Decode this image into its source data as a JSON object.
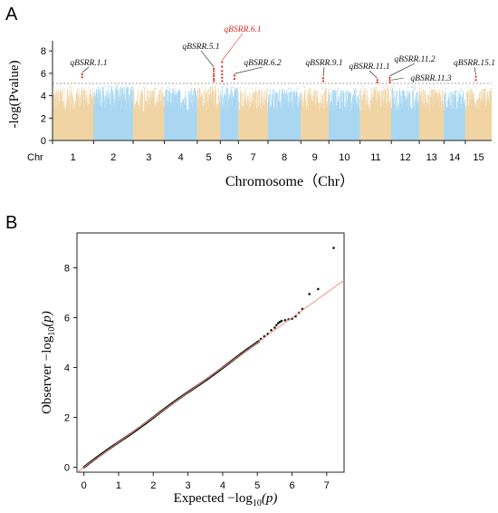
{
  "panels": {
    "a_label": "A",
    "b_label": "B"
  },
  "colors": {
    "odd_chr": "#f0d4a4",
    "even_chr": "#a9d7f2",
    "significant": "#e3261f",
    "threshold": "#888888",
    "highlight_label": "#e3261f",
    "qq_points": "#111111",
    "qq_line": "#f08c7c"
  },
  "chart_data": [
    {
      "type": "scatter",
      "subtype": "manhattan",
      "ylabel": "-log(Pvalue)",
      "xlabel": "Chromosome（Chr）",
      "x_prefix": "Chr",
      "ylim": [
        0,
        8.5
      ],
      "yticks": [
        "0",
        "2",
        "4",
        "6",
        "8"
      ],
      "chromosomes": [
        "1",
        "2",
        "3",
        "4",
        "5",
        "6",
        "7",
        "8",
        "9",
        "10",
        "11",
        "12",
        "13",
        "14",
        "15"
      ],
      "chromosome_widths": [
        1.25,
        1.2,
        0.95,
        1.0,
        0.7,
        0.55,
        0.9,
        1.0,
        0.85,
        0.95,
        0.95,
        0.85,
        0.75,
        0.65,
        0.8
      ],
      "threshold": 5.1,
      "baseline_max": [
        4.8,
        4.9,
        4.7,
        4.7,
        4.9,
        4.9,
        4.6,
        4.6,
        4.7,
        4.6,
        4.8,
        4.7,
        4.6,
        4.5,
        4.7
      ],
      "significant_points": [
        {
          "chr": "1",
          "pos": 0.72,
          "values": [
            5.9,
            5.65
          ]
        },
        {
          "chr": "5",
          "pos": 0.72,
          "values": [
            5.3,
            5.5,
            5.75,
            5.95,
            6.2,
            6.4
          ]
        },
        {
          "chr": "6",
          "pos": 0.1,
          "values": [
            5.3,
            5.6,
            5.9,
            6.2,
            6.6,
            7.0
          ]
        },
        {
          "chr": "6",
          "pos": 0.78,
          "values": [
            5.5,
            5.8
          ]
        },
        {
          "chr": "9",
          "pos": 0.8,
          "values": [
            5.3,
            5.55
          ]
        },
        {
          "chr": "11",
          "pos": 0.55,
          "values": [
            5.2,
            5.4
          ]
        },
        {
          "chr": "11",
          "pos": 0.95,
          "values": [
            5.2,
            5.4,
            5.6
          ]
        },
        {
          "chr": "15",
          "pos": 0.4,
          "values": [
            5.4,
            5.7
          ]
        }
      ],
      "annotations": [
        {
          "text": "qBSRR.1.1",
          "chr": "1",
          "pos": 0.72,
          "highlight": false
        },
        {
          "text": "qBSRR.5.1",
          "chr": "5",
          "pos": 0.72,
          "highlight": false
        },
        {
          "text": "qBSRR.6.1",
          "chr": "6",
          "pos": 0.1,
          "highlight": true
        },
        {
          "text": "qBSRR.6.2",
          "chr": "6",
          "pos": 0.78,
          "highlight": false
        },
        {
          "text": "qBSRR.9.1",
          "chr": "9",
          "pos": 0.8,
          "highlight": false
        },
        {
          "text": "qBSRR.11.1",
          "chr": "11",
          "pos": 0.55,
          "highlight": false
        },
        {
          "text": "qBSRR.11.2",
          "chr": "11",
          "pos": 0.95,
          "highlight": false
        },
        {
          "text": "qBSRR.11.3",
          "chr": "11",
          "pos": 0.95,
          "highlight": false
        },
        {
          "text": "qBSRR.15.1",
          "chr": "15",
          "pos": 0.4,
          "highlight": false
        }
      ]
    },
    {
      "type": "scatter",
      "subtype": "qq",
      "xlabel": "Expected −log",
      "xlabel_sub": "10",
      "xlabel_tail": "(p)",
      "ylabel": "Observer −log",
      "ylabel_sub": "10",
      "ylabel_tail": "(p)",
      "xlim": [
        -0.2,
        7.5
      ],
      "ylim": [
        -0.2,
        9.4
      ],
      "xticks": [
        "0",
        "1",
        "2",
        "3",
        "4",
        "5",
        "6",
        "7"
      ],
      "yticks": [
        "0",
        "2",
        "4",
        "6",
        "8"
      ],
      "reference_line": {
        "x": [
          -0.2,
          7.5
        ],
        "y": [
          -0.2,
          7.5
        ]
      },
      "tail_points": [
        {
          "x": 5.1,
          "y": 5.15
        },
        {
          "x": 5.2,
          "y": 5.25
        },
        {
          "x": 5.3,
          "y": 5.35
        },
        {
          "x": 5.4,
          "y": 5.5
        },
        {
          "x": 5.5,
          "y": 5.6
        },
        {
          "x": 5.55,
          "y": 5.7
        },
        {
          "x": 5.6,
          "y": 5.78
        },
        {
          "x": 5.65,
          "y": 5.83
        },
        {
          "x": 5.7,
          "y": 5.87
        },
        {
          "x": 5.8,
          "y": 5.9
        },
        {
          "x": 5.9,
          "y": 5.93
        },
        {
          "x": 6.0,
          "y": 5.96
        },
        {
          "x": 6.1,
          "y": 6.05
        },
        {
          "x": 6.2,
          "y": 6.2
        },
        {
          "x": 6.3,
          "y": 6.35
        },
        {
          "x": 6.5,
          "y": 6.95
        },
        {
          "x": 6.75,
          "y": 7.15
        },
        {
          "x": 7.2,
          "y": 8.8
        }
      ]
    }
  ]
}
